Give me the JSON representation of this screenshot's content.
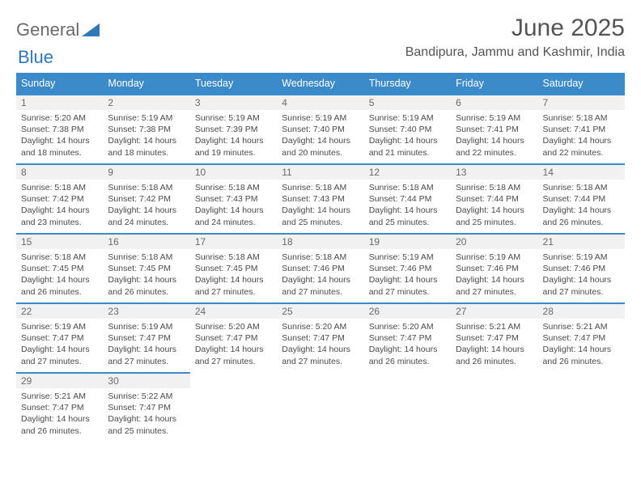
{
  "brand": {
    "part1": "General",
    "part2": "Blue"
  },
  "title": "June 2025",
  "location": "Bandipura, Jammu and Kashmir, India",
  "colors": {
    "header_bg": "#3b8bca",
    "header_text": "#ffffff",
    "daynum_bg": "#f1f1f1",
    "border": "#3b8bca",
    "title_color": "#545454",
    "body_text": "#4a4a4a"
  },
  "weekdays": [
    "Sunday",
    "Monday",
    "Tuesday",
    "Wednesday",
    "Thursday",
    "Friday",
    "Saturday"
  ],
  "days": {
    "1": {
      "sunrise": "5:20 AM",
      "sunset": "7:38 PM",
      "daylight": "14 hours and 18 minutes."
    },
    "2": {
      "sunrise": "5:19 AM",
      "sunset": "7:38 PM",
      "daylight": "14 hours and 18 minutes."
    },
    "3": {
      "sunrise": "5:19 AM",
      "sunset": "7:39 PM",
      "daylight": "14 hours and 19 minutes."
    },
    "4": {
      "sunrise": "5:19 AM",
      "sunset": "7:40 PM",
      "daylight": "14 hours and 20 minutes."
    },
    "5": {
      "sunrise": "5:19 AM",
      "sunset": "7:40 PM",
      "daylight": "14 hours and 21 minutes."
    },
    "6": {
      "sunrise": "5:19 AM",
      "sunset": "7:41 PM",
      "daylight": "14 hours and 22 minutes."
    },
    "7": {
      "sunrise": "5:18 AM",
      "sunset": "7:41 PM",
      "daylight": "14 hours and 22 minutes."
    },
    "8": {
      "sunrise": "5:18 AM",
      "sunset": "7:42 PM",
      "daylight": "14 hours and 23 minutes."
    },
    "9": {
      "sunrise": "5:18 AM",
      "sunset": "7:42 PM",
      "daylight": "14 hours and 24 minutes."
    },
    "10": {
      "sunrise": "5:18 AM",
      "sunset": "7:43 PM",
      "daylight": "14 hours and 24 minutes."
    },
    "11": {
      "sunrise": "5:18 AM",
      "sunset": "7:43 PM",
      "daylight": "14 hours and 25 minutes."
    },
    "12": {
      "sunrise": "5:18 AM",
      "sunset": "7:44 PM",
      "daylight": "14 hours and 25 minutes."
    },
    "13": {
      "sunrise": "5:18 AM",
      "sunset": "7:44 PM",
      "daylight": "14 hours and 25 minutes."
    },
    "14": {
      "sunrise": "5:18 AM",
      "sunset": "7:44 PM",
      "daylight": "14 hours and 26 minutes."
    },
    "15": {
      "sunrise": "5:18 AM",
      "sunset": "7:45 PM",
      "daylight": "14 hours and 26 minutes."
    },
    "16": {
      "sunrise": "5:18 AM",
      "sunset": "7:45 PM",
      "daylight": "14 hours and 26 minutes."
    },
    "17": {
      "sunrise": "5:18 AM",
      "sunset": "7:45 PM",
      "daylight": "14 hours and 27 minutes."
    },
    "18": {
      "sunrise": "5:18 AM",
      "sunset": "7:46 PM",
      "daylight": "14 hours and 27 minutes."
    },
    "19": {
      "sunrise": "5:19 AM",
      "sunset": "7:46 PM",
      "daylight": "14 hours and 27 minutes."
    },
    "20": {
      "sunrise": "5:19 AM",
      "sunset": "7:46 PM",
      "daylight": "14 hours and 27 minutes."
    },
    "21": {
      "sunrise": "5:19 AM",
      "sunset": "7:46 PM",
      "daylight": "14 hours and 27 minutes."
    },
    "22": {
      "sunrise": "5:19 AM",
      "sunset": "7:47 PM",
      "daylight": "14 hours and 27 minutes."
    },
    "23": {
      "sunrise": "5:19 AM",
      "sunset": "7:47 PM",
      "daylight": "14 hours and 27 minutes."
    },
    "24": {
      "sunrise": "5:20 AM",
      "sunset": "7:47 PM",
      "daylight": "14 hours and 27 minutes."
    },
    "25": {
      "sunrise": "5:20 AM",
      "sunset": "7:47 PM",
      "daylight": "14 hours and 27 minutes."
    },
    "26": {
      "sunrise": "5:20 AM",
      "sunset": "7:47 PM",
      "daylight": "14 hours and 26 minutes."
    },
    "27": {
      "sunrise": "5:21 AM",
      "sunset": "7:47 PM",
      "daylight": "14 hours and 26 minutes."
    },
    "28": {
      "sunrise": "5:21 AM",
      "sunset": "7:47 PM",
      "daylight": "14 hours and 26 minutes."
    },
    "29": {
      "sunrise": "5:21 AM",
      "sunset": "7:47 PM",
      "daylight": "14 hours and 26 minutes."
    },
    "30": {
      "sunrise": "5:22 AM",
      "sunset": "7:47 PM",
      "daylight": "14 hours and 25 minutes."
    }
  },
  "labels": {
    "sunrise": "Sunrise: ",
    "sunset": "Sunset: ",
    "daylight": "Daylight: "
  },
  "layout": {
    "first_day_column": 0,
    "num_days": 30,
    "columns": 7
  }
}
